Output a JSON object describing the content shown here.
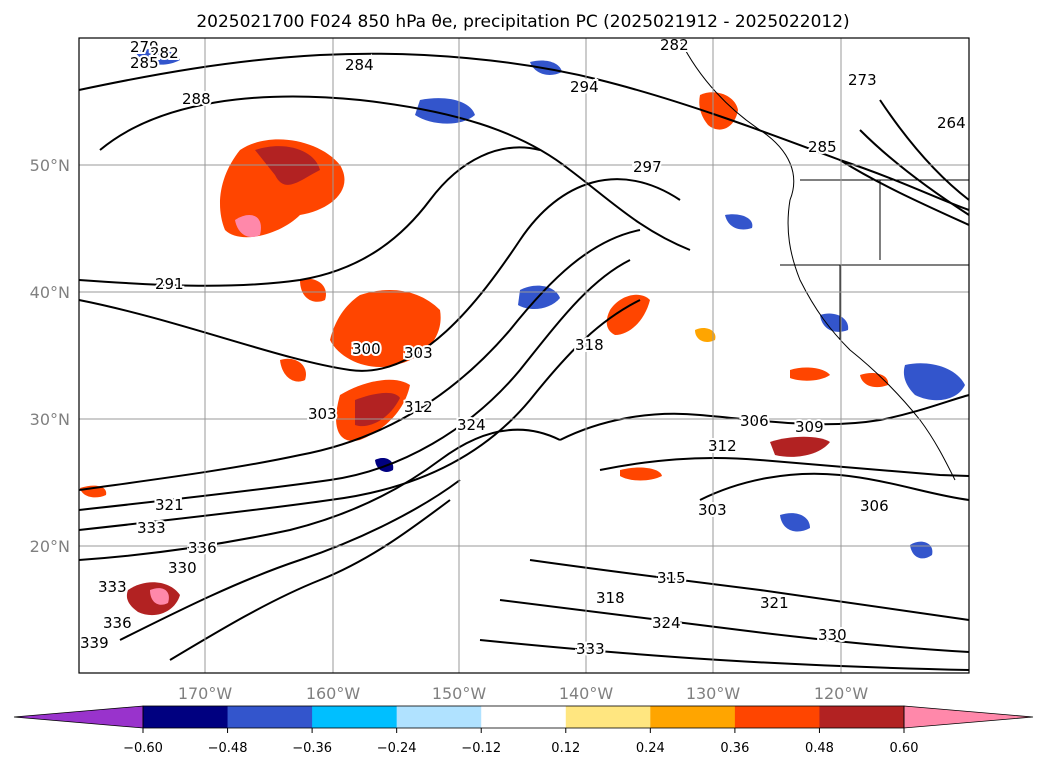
{
  "title": "2025021700 F024 850 hPa θe, precipitation PC (2025021912 - 2025022012)",
  "map": {
    "lat_labels": [
      "50°N",
      "40°N",
      "30°N",
      "20°N"
    ],
    "lon_labels": [
      "170°W",
      "160°W",
      "150°W",
      "140°W",
      "130°W",
      "120°W"
    ],
    "contour_labels": [
      "279",
      "282",
      "285",
      "284",
      "288",
      "294",
      "297",
      "291",
      "300",
      "303",
      "303",
      "312",
      "318",
      "324",
      "306",
      "309",
      "312",
      "303",
      "306",
      "321",
      "333",
      "336",
      "330",
      "333",
      "339",
      "336",
      "315",
      "318",
      "324",
      "321",
      "330",
      "333",
      "264",
      "273",
      "282",
      "285"
    ]
  },
  "colorbar": {
    "ticks": [
      "−0.60",
      "−0.48",
      "−0.36",
      "−0.24",
      "−0.12",
      "0.12",
      "0.24",
      "0.36",
      "0.48",
      "0.60"
    ],
    "colors": [
      "#9933cc",
      "#000080",
      "#3355cc",
      "#00bfff",
      "#b0e2ff",
      "#ffffff",
      "#ffe680",
      "#ffa500",
      "#ff4500",
      "#b22222",
      "#ff88aa",
      "#ff88aa"
    ]
  }
}
